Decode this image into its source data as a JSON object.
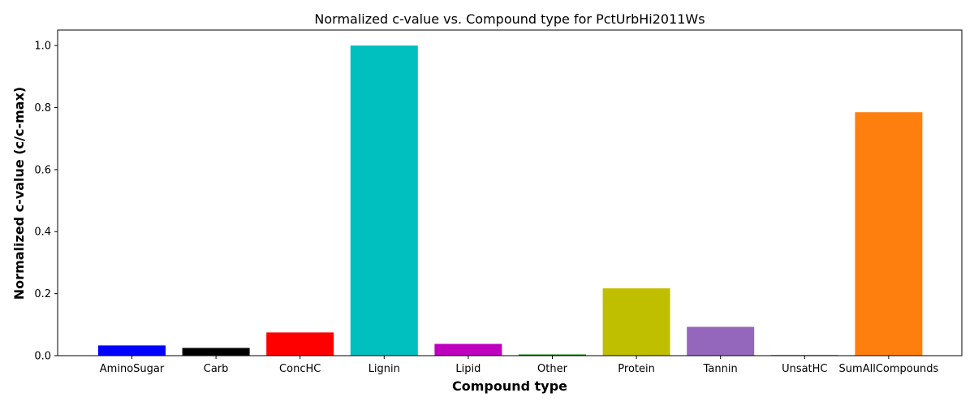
{
  "chart_data": {
    "type": "bar",
    "title": "Normalized c-value vs. Compound type for PctUrbHi2011Ws",
    "xlabel": "Compound type",
    "ylabel": "Normalized c-value (c/c-max)",
    "categories": [
      "AminoSugar",
      "Carb",
      "ConcHC",
      "Lignin",
      "Lipid",
      "Other",
      "Protein",
      "Tannin",
      "UnsatHC",
      "SumAllCompounds"
    ],
    "values": [
      0.033,
      0.025,
      0.075,
      1.0,
      0.038,
      0.004,
      0.217,
      0.093,
      0.002,
      0.785
    ],
    "colors": [
      "#0000ff",
      "#000000",
      "#ff0000",
      "#00bfbf",
      "#bf00bf",
      "#008000",
      "#bfbf00",
      "#9467bd",
      "#7f7f7f",
      "#ff7f0e"
    ],
    "ylim": [
      0,
      1.05
    ],
    "yticks": [
      0.0,
      0.2,
      0.4,
      0.6,
      0.8,
      1.0
    ],
    "ytick_labels": [
      "0.0",
      "0.2",
      "0.4",
      "0.6",
      "0.8",
      "1.0"
    ],
    "grid": false,
    "legend": "none"
  }
}
